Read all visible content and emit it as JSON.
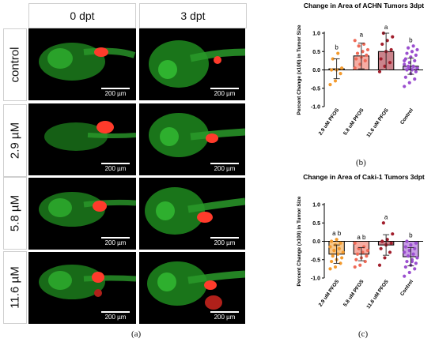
{
  "left_figure": {
    "columns": [
      "0 dpt",
      "3 dpt"
    ],
    "rows": [
      "control",
      "2.9 µM",
      "5.8 µM",
      "11.6 µM"
    ],
    "scale_label": "200 µm",
    "caption": "(a)"
  },
  "chart_data": [
    {
      "type": "bar",
      "title": "Change in Area of ACHN Tumors 3dpt",
      "caption": "(b)",
      "ylabel": "Percent Change (x100) in Tumor Size",
      "ylim": [
        -1.0,
        1.0
      ],
      "yticks": [
        "1.0",
        "0.5",
        "0.0",
        "-0.5",
        "-1.0"
      ],
      "categories": [
        "2.9 uM PFOS",
        "5.8 uM PFOS",
        "11.6 uM PFOS",
        "Control"
      ],
      "values": [
        0.03,
        0.38,
        0.5,
        0.1
      ],
      "errors": [
        0.27,
        0.35,
        0.5,
        0.22
      ],
      "letters": [
        "b",
        "a",
        "a",
        "b"
      ],
      "colors": [
        "#f39a2d",
        "#ef6a57",
        "#a11e2c",
        "#9b4fcf"
      ],
      "points": [
        [
          -0.4,
          -0.3,
          -0.1,
          0.0,
          0.0,
          0.05,
          0.3,
          0.45
        ],
        [
          0.05,
          0.15,
          0.25,
          0.3,
          0.35,
          0.4,
          0.45,
          0.5,
          0.55,
          0.65,
          0.7,
          0.8
        ],
        [
          -0.05,
          0.1,
          0.2,
          0.3,
          0.5,
          0.55,
          0.7,
          0.8,
          0.9,
          1.0
        ],
        [
          -0.45,
          -0.35,
          -0.25,
          -0.2,
          -0.1,
          -0.05,
          0.0,
          0.0,
          0.05,
          0.1,
          0.1,
          0.15,
          0.2,
          0.25,
          0.3,
          0.35,
          0.4,
          0.45,
          0.5,
          0.55,
          0.6,
          0.65,
          0.25,
          0.05
        ]
      ]
    },
    {
      "type": "bar",
      "title": "Change in Area of Caki-1 Tumors 3dpt",
      "caption": "(c)",
      "ylabel": "Percent Change (x100) in Tumor Size",
      "ylim": [
        -1.0,
        1.0
      ],
      "yticks": [
        "1.0",
        "0.5",
        "0.0",
        "-0.5",
        "-1.0"
      ],
      "categories": [
        "2.9 uM PFOS",
        "5.8 uM PFOS",
        "11.6 uM PFOS",
        "Control"
      ],
      "values": [
        -0.35,
        -0.35,
        -0.1,
        -0.42
      ],
      "errors": [
        0.25,
        0.18,
        0.28,
        0.25
      ],
      "letters": [
        "a b",
        "a b",
        "a",
        "b"
      ],
      "colors": [
        "#f39a2d",
        "#ef6a57",
        "#a11e2c",
        "#9b4fcf"
      ],
      "points": [
        [
          -0.75,
          -0.7,
          -0.6,
          -0.55,
          -0.5,
          -0.45,
          -0.4,
          -0.35,
          -0.3,
          -0.25,
          -0.2,
          -0.15,
          -0.1,
          -0.05,
          0.0,
          0.05
        ],
        [
          -0.7,
          -0.65,
          -0.55,
          -0.5,
          -0.45,
          -0.4,
          -0.35,
          -0.3,
          -0.25,
          -0.2,
          -0.15,
          -0.05
        ],
        [
          -0.65,
          -0.45,
          -0.3,
          -0.2,
          -0.1,
          -0.05,
          0.0,
          0.05,
          0.2,
          0.5
        ],
        [
          -0.95,
          -0.85,
          -0.75,
          -0.7,
          -0.65,
          -0.6,
          -0.55,
          -0.5,
          -0.45,
          -0.4,
          -0.35,
          -0.3,
          -0.25,
          -0.2,
          -0.15,
          -0.1,
          -0.05,
          0.0,
          -0.55,
          -0.45
        ]
      ]
    }
  ]
}
